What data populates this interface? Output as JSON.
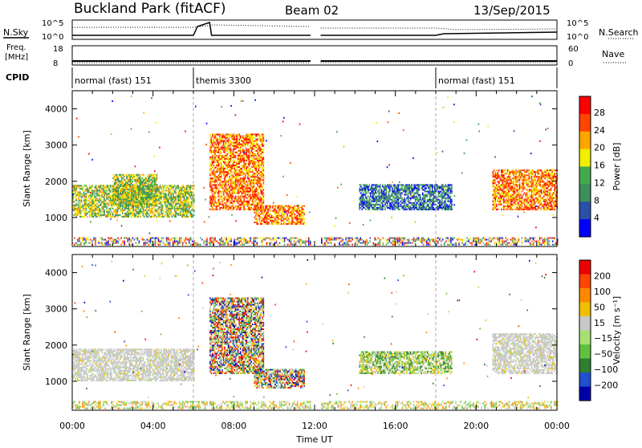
{
  "header": {
    "site": "Buckland Park (fitACF)",
    "beam": "Beam 02",
    "date": "13/Sep/2015"
  },
  "nsky_panel": {
    "left_label": "N.Sky",
    "right_label": "N.Search",
    "left_ticks": [
      "10^5",
      "10^0"
    ],
    "right_ticks": [
      "10^5",
      "10^0"
    ]
  },
  "freq_panel": {
    "left_label_1": "Freq.",
    "left_label_2": "[MHz]",
    "right_label": "Nave",
    "left_ticks": [
      "18",
      "8"
    ],
    "right_ticks": [
      "60",
      "0"
    ]
  },
  "cpid": {
    "label": "CPID",
    "modes": [
      {
        "name": "normal (fast) 151",
        "start_hour": 0,
        "end_hour": 6
      },
      {
        "name": "themis 3300",
        "start_hour": 6,
        "end_hour": 18
      },
      {
        "name": "normal (fast) 151",
        "start_hour": 18,
        "end_hour": 24
      }
    ]
  },
  "chart_data": [
    {
      "type": "heatmap",
      "title": "",
      "xlabel": "Time UT",
      "ylabel": "Slant Range [km]",
      "xlim": [
        0,
        24
      ],
      "ylim": [
        200,
        4500
      ],
      "yticks": [
        1000,
        2000,
        3000,
        4000
      ],
      "x_ticks": [
        "00:00",
        "04:00",
        "08:00",
        "12:00",
        "16:00",
        "20:00",
        "00:00"
      ],
      "colorbar": {
        "label": "Power [dB]",
        "ticks": [
          "4",
          "8",
          "12",
          "16",
          "20",
          "24",
          "28"
        ],
        "range": [
          0,
          30
        ],
        "colors": [
          "#0000ff",
          "#2c4fa8",
          "#3c8f5a",
          "#44a84f",
          "#f0f000",
          "#ffa500",
          "#ff4400",
          "#ff0000"
        ]
      },
      "echo_regions": [
        {
          "t_start": 0.0,
          "t_end": 6.0,
          "r_bottom": 1000,
          "r_top": 1900,
          "level": "medium"
        },
        {
          "t_start": 2.0,
          "t_end": 4.2,
          "r_bottom": 1300,
          "r_top": 2200,
          "level": "medium"
        },
        {
          "t_start": 6.8,
          "t_end": 9.5,
          "r_bottom": 1200,
          "r_top": 3300,
          "level": "strong"
        },
        {
          "t_start": 9.0,
          "t_end": 11.5,
          "r_bottom": 800,
          "r_top": 1300,
          "level": "strong"
        },
        {
          "t_start": 14.2,
          "t_end": 18.8,
          "r_bottom": 1200,
          "r_top": 1900,
          "level": "weak"
        },
        {
          "t_start": 20.8,
          "t_end": 24.0,
          "r_bottom": 1200,
          "r_top": 2300,
          "level": "strong"
        }
      ],
      "gaps": [
        [
          11.8,
          12.3
        ]
      ]
    },
    {
      "type": "heatmap",
      "title": "",
      "xlabel": "Time UT",
      "ylabel": "Slant Range [km]",
      "xlim": [
        0,
        24
      ],
      "ylim": [
        200,
        4500
      ],
      "yticks": [
        1000,
        2000,
        3000,
        4000
      ],
      "x_ticks": [
        "00:00",
        "04:00",
        "08:00",
        "12:00",
        "16:00",
        "20:00",
        "00:00"
      ],
      "colorbar": {
        "label": "Velocity [m s⁻¹]",
        "ticks": [
          "200",
          "100",
          "50",
          "15",
          "−15",
          "−50",
          "−100",
          "−200"
        ],
        "range": [
          -250,
          250
        ],
        "colors": [
          "#0000aa",
          "#2050d0",
          "#2f7f2f",
          "#60c040",
          "#a8e070",
          "#c8c8c8",
          "#f0c000",
          "#ff8800",
          "#ff4400",
          "#ee0000"
        ]
      },
      "echo_regions": [
        {
          "t_start": 0.0,
          "t_end": 6.0,
          "r_bottom": 1000,
          "r_top": 1900,
          "level": "ground"
        },
        {
          "t_start": 6.8,
          "t_end": 9.5,
          "r_bottom": 1200,
          "r_top": 3300,
          "level": "mixed"
        },
        {
          "t_start": 9.0,
          "t_end": 11.5,
          "r_bottom": 800,
          "r_top": 1300,
          "level": "mixed"
        },
        {
          "t_start": 14.2,
          "t_end": 18.8,
          "r_bottom": 1200,
          "r_top": 1800,
          "level": "negative"
        },
        {
          "t_start": 20.8,
          "t_end": 24.0,
          "r_bottom": 1200,
          "r_top": 2300,
          "level": "ground"
        }
      ],
      "gaps": [
        [
          11.8,
          12.3
        ]
      ]
    }
  ]
}
